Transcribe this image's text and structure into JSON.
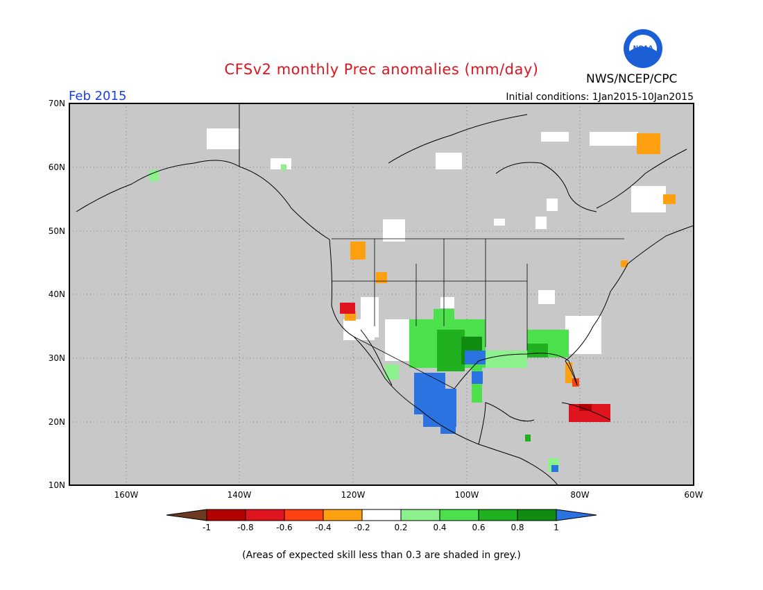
{
  "header": {
    "title": "CFSv2 monthly Prec anomalies (mm/day)",
    "org": "NWS/NCEP/CPC",
    "logo_text": "NOAA",
    "month": "Feb 2015",
    "initial_conditions": "Initial conditions: 1Jan2015-10Jan2015"
  },
  "map": {
    "lat_labels": [
      "70N",
      "60N",
      "50N",
      "40N",
      "30N",
      "20N",
      "10N"
    ],
    "lon_labels": [
      "160W",
      "140W",
      "120W",
      "100W",
      "80W",
      "60W"
    ],
    "background_color": "#c8c8c8",
    "grid": true
  },
  "legend": {
    "tick_labels": [
      "-1",
      "-0.8",
      "-0.6",
      "-0.4",
      "-0.2",
      "0.2",
      "0.4",
      "0.6",
      "0.8",
      "1"
    ],
    "colors": [
      "#6b3a1f",
      "#b30000",
      "#e0141e",
      "#ff4010",
      "#ffa010",
      "#ffffff",
      "#8cf08c",
      "#4ce04c",
      "#20b020",
      "#108c10",
      "#2b73e0"
    ]
  },
  "footnote": "(Areas of expected skill less than 0.3 are shaded in grey.)"
}
